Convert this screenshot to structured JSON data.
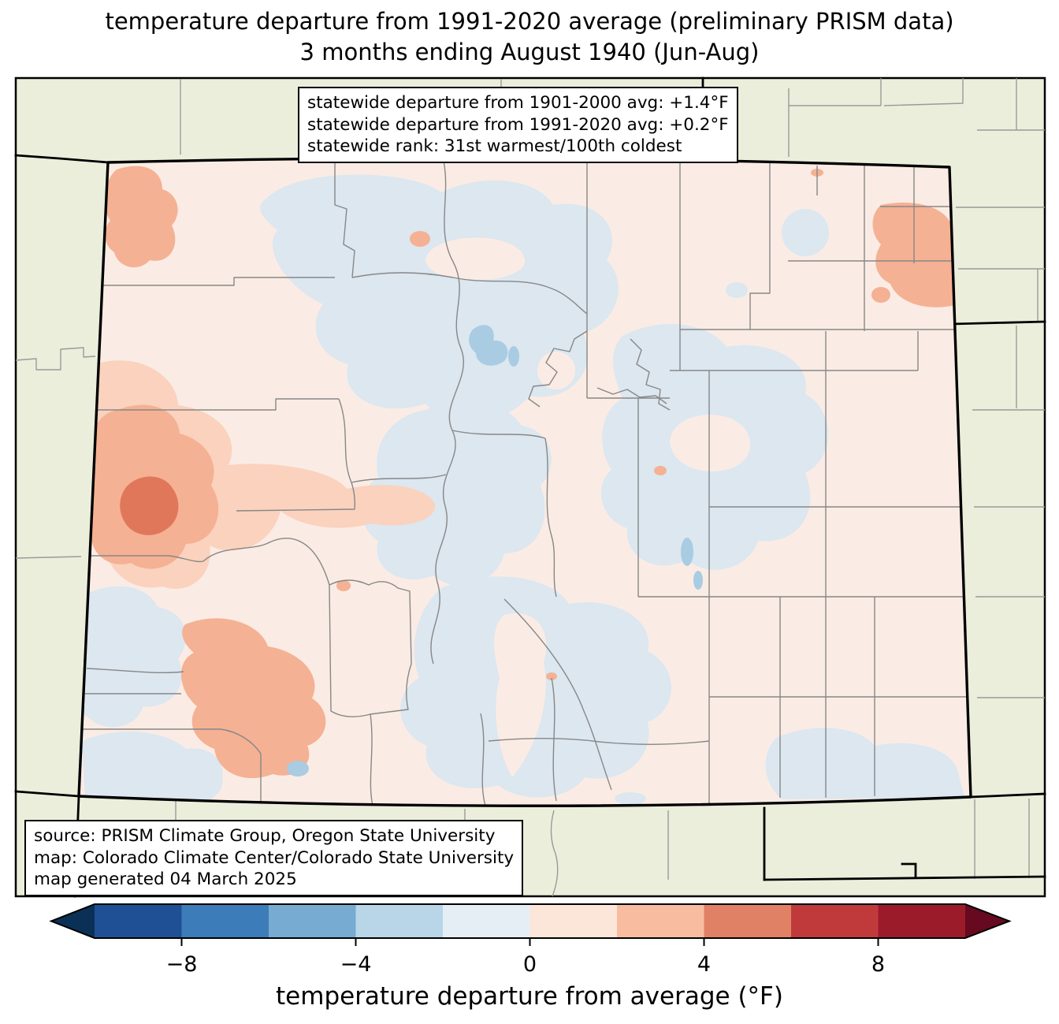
{
  "title": {
    "line1": "temperature departure from 1991-2020 average (preliminary PRISM data)",
    "line2": "3 months ending August 1940 (Jun-Aug)"
  },
  "stats_box": {
    "line1": "statewide departure from 1901-2000 avg: +1.4°F",
    "line2": "statewide departure from 1991-2020 avg: +0.2°F",
    "line3": "statewide rank: 31st warmest/100th coldest"
  },
  "source_box": {
    "line1": "source: PRISM Climate Group, Oregon State University",
    "line2": "map: Colorado Climate Center/Colorado State University",
    "line3": "map generated 04 March 2025"
  },
  "map": {
    "region": "Colorado",
    "colors": {
      "outside_fill": "#eceedc",
      "state_fill": "#faece4",
      "cool_fill": "#dce7f0",
      "cool_strong_fill": "#a9cce3",
      "warm_light_fill": "#fad2be",
      "warm_fill": "#f5b193",
      "warm_strong_fill": "#e0775b",
      "county_line": "#878787",
      "border_line": "#000000"
    }
  },
  "colorbar": {
    "label": "temperature departure from average (°F)",
    "unit": "°F",
    "range_min": -10,
    "range_max": 10,
    "tick_values": [
      -8,
      -4,
      0,
      4,
      8
    ],
    "tick_labels": [
      "−8",
      "−4",
      "0",
      "4",
      "8"
    ],
    "segment_colors": [
      "#1f5096",
      "#3c7cb8",
      "#77abd1",
      "#b8d6e8",
      "#e5eef5",
      "#fce5d9",
      "#f8bda0",
      "#e08165",
      "#c03a3c",
      "#9b1b2b"
    ],
    "left_arrow_color": "#0b3055",
    "right_arrow_color": "#670a1f"
  }
}
